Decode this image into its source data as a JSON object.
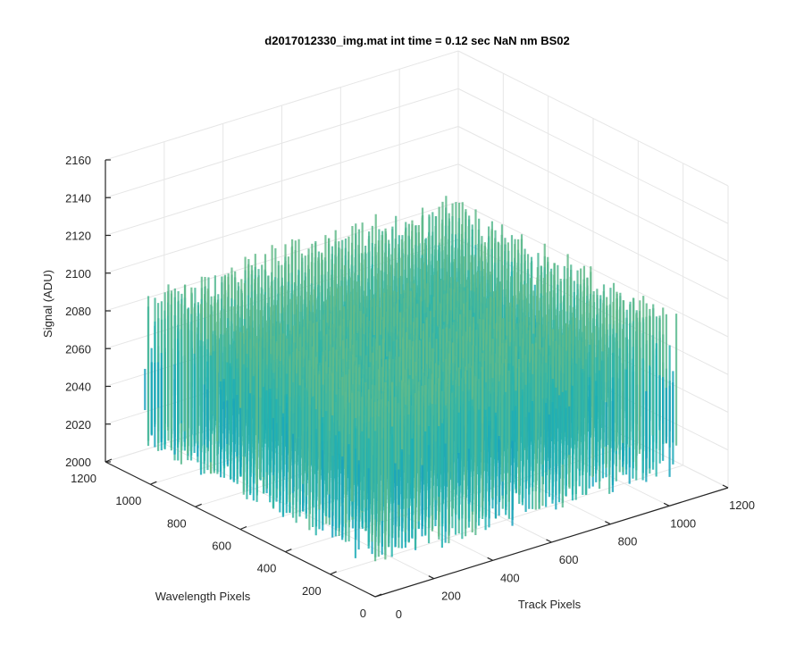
{
  "chart_data": {
    "type": "surface",
    "title": "d2017012330_img.mat int time = 0.12 sec  NaN nm BS02",
    "xlabel": "Track Pixels",
    "ylabel": "Wavelength Pixels",
    "zlabel": "Signal (ADU)",
    "xlim": [
      0,
      1200
    ],
    "ylim": [
      0,
      1200
    ],
    "zlim": [
      2000,
      2160
    ],
    "x_ticks": [
      "0",
      "200",
      "400",
      "600",
      "800",
      "1000",
      "1200"
    ],
    "y_ticks": [
      "0",
      "200",
      "400",
      "600",
      "800",
      "1000",
      "1200"
    ],
    "z_ticks": [
      "2000",
      "2020",
      "2040",
      "2060",
      "2080",
      "2100",
      "2120",
      "2140",
      "2160"
    ],
    "x_tick_values": [
      0,
      200,
      400,
      600,
      800,
      1000,
      1200
    ],
    "y_tick_values": [
      0,
      200,
      400,
      600,
      800,
      1000,
      1200
    ],
    "z_tick_values": [
      2000,
      2020,
      2040,
      2060,
      2080,
      2100,
      2120,
      2140,
      2160
    ],
    "data_extent": {
      "x": [
        0,
        1024
      ],
      "y": [
        0,
        1024
      ]
    },
    "z_baseline": 2060,
    "z_noise_range": [
      2010,
      2150
    ],
    "grid": true,
    "colormap": "parula",
    "colors": {
      "low": "#0a72d8",
      "mid": "#1fb3b3",
      "high": "#e6c93a",
      "grid": "#e6e6e6",
      "axis": "#262626"
    }
  }
}
